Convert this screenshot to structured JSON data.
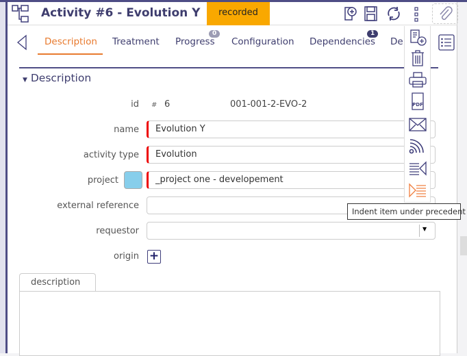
{
  "header": {
    "title": "Activity  #6  - Evolution Y",
    "status": "recorded",
    "status_color": "#f9a800"
  },
  "tabs": [
    {
      "label": "Description",
      "active": true
    },
    {
      "label": "Treatment"
    },
    {
      "label": "Progress",
      "badge": "0"
    },
    {
      "label": "Configuration"
    },
    {
      "label": "Dependencies",
      "badge": "1"
    },
    {
      "label": "De"
    }
  ],
  "section": {
    "title": "Description"
  },
  "fields": {
    "id": {
      "label": "id",
      "hash": "#",
      "value": "6",
      "reference": "001-001-2-EVO-2"
    },
    "name": {
      "label": "name",
      "value": "Evolution Y"
    },
    "activity_type": {
      "label": "activity type",
      "value": "Evolution"
    },
    "project": {
      "label": "project",
      "value": "_project one - developement",
      "color": "#87ceeb"
    },
    "external_reference": {
      "label": "external reference",
      "value": ""
    },
    "requestor": {
      "label": "requestor",
      "value": ""
    },
    "origin": {
      "label": "origin"
    }
  },
  "description_tab": {
    "label": "description"
  },
  "menu": {
    "items": [
      "copy",
      "delete",
      "print",
      "pdf",
      "email",
      "subscribe",
      "outdent",
      "indent"
    ],
    "tooltip": "Indent item under precedent"
  }
}
